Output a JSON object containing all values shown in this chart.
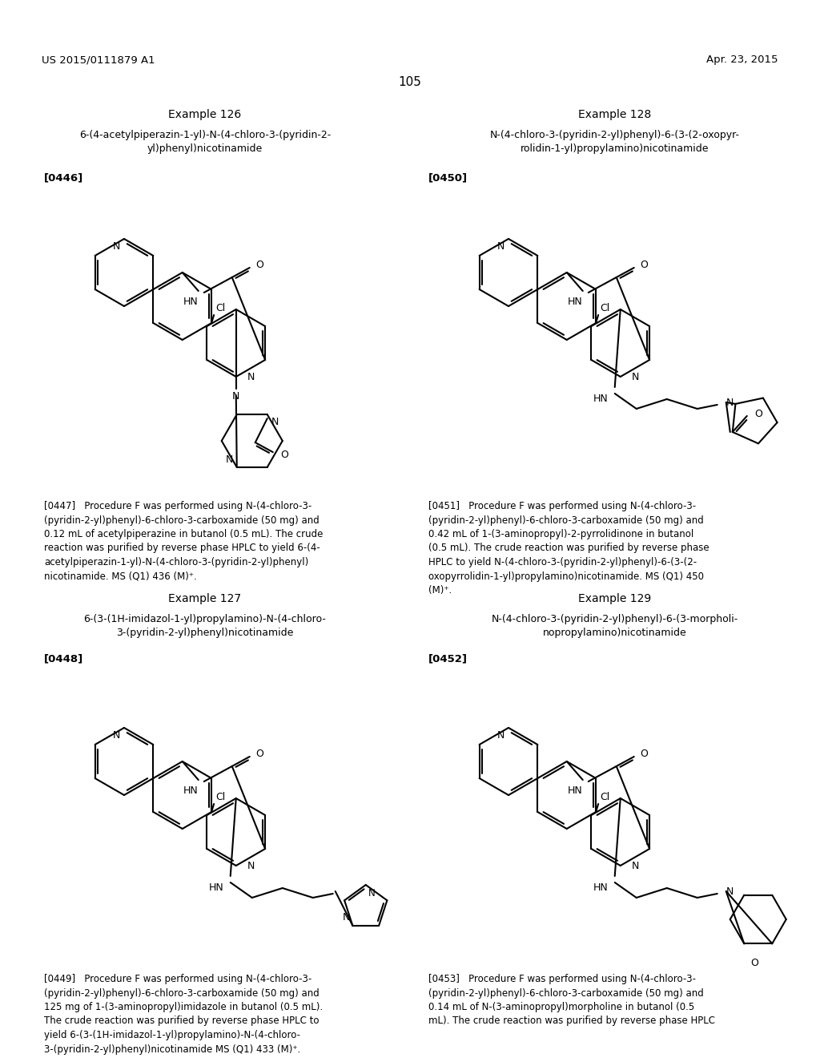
{
  "page_number": "105",
  "header_left": "US 2015/0111879 A1",
  "header_right": "Apr. 23, 2015",
  "background_color": "#ffffff",
  "text_color": "#000000",
  "ex126_title": "Example 126",
  "ex126_name": "6-(4-acetylpiperazin-1-yl)-N-(4-chloro-3-(pyridin-2-\nyl)phenyl)nicotinamide",
  "ex126_tag": "[0446]",
  "ex127_title": "Example 127",
  "ex127_name": "6-(3-(1H-imidazol-1-yl)propylamino)-N-(4-chloro-\n3-(pyridin-2-yl)phenyl)nicotinamide",
  "ex127_tag": "[0448]",
  "ex128_title": "Example 128",
  "ex128_name": "N-(4-chloro-3-(pyridin-2-yl)phenyl)-6-(3-(2-oxopyr-\nrolidin-1-yl)propylamino)nicotinamide",
  "ex128_tag": "[0450]",
  "ex129_title": "Example 129",
  "ex129_name": "N-(4-chloro-3-(pyridin-2-yl)phenyl)-6-(3-morpholi-\nnopropylamino)nicotinamide",
  "ex129_tag": "[0452]",
  "p447": "[0447]   Procedure F was performed using N-(4-chloro-3-\n(pyridin-2-yl)phenyl)-6-chloro-3-carboxamide (50 mg) and\n0.12 mL of acetylpiperazine in butanol (0.5 mL). The crude\nreaction was purified by reverse phase HPLC to yield 6-(4-\nacetylpiperazin-1-yl)-N-(4-chloro-3-(pyridin-2-yl)phenyl)\nnicotinamide. MS (Q1) 436 (M)⁺.",
  "p451": "[0451]   Procedure F was performed using N-(4-chloro-3-\n(pyridin-2-yl)phenyl)-6-chloro-3-carboxamide (50 mg) and\n0.42 mL of 1-(3-aminopropyl)-2-pyrrolidinone in butanol\n(0.5 mL). The crude reaction was purified by reverse phase\nHPLC to yield N-(4-chloro-3-(pyridin-2-yl)phenyl)-6-(3-(2-\noxopyrrolidin-1-yl)propylamino)nicotinamide. MS (Q1) 450\n(M)⁺.",
  "p449": "[0449]   Procedure F was performed using N-(4-chloro-3-\n(pyridin-2-yl)phenyl)-6-chloro-3-carboxamide (50 mg) and\n125 mg of 1-(3-aminopropyl)imidazole in butanol (0.5 mL).\nThe crude reaction was purified by reverse phase HPLC to\nyield 6-(3-(1H-imidazol-1-yl)propylamino)-N-(4-chloro-\n3-(pyridin-2-yl)phenyl)nicotinamide MS (Q1) 433 (M)⁺.",
  "p453": "[0453]   Procedure F was performed using N-(4-chloro-3-\n(pyridin-2-yl)phenyl)-6-chloro-3-carboxamide (50 mg) and\n0.14 mL of N-(3-aminopropyl)morpholine in butanol (0.5\nmL). The crude reaction was purified by reverse phase HPLC"
}
